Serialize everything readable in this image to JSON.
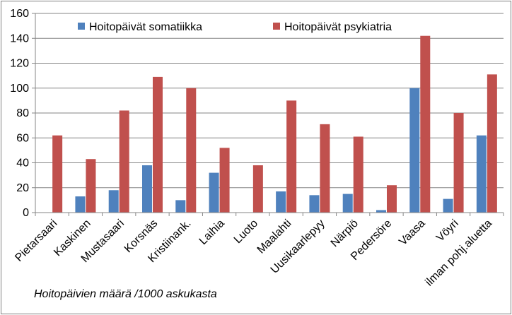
{
  "chart_data": {
    "type": "bar",
    "categories": [
      "Pietarsaari",
      "Kaskinen",
      "Mustasaari",
      "Korsnäs",
      "Kristiinank.",
      "Laihia",
      "Luoto",
      "Maalahti",
      "Uusikaarlepyy",
      "Närpiö",
      "Pedersöre",
      "Vaasa",
      "Vöyri",
      "ilman pohj.aluetta"
    ],
    "series": [
      {
        "name": "Hoitopäivät somatiikka",
        "color": "#4f81bd",
        "values": [
          0,
          13,
          18,
          38,
          10,
          32,
          0,
          17,
          14,
          15,
          2,
          100,
          11,
          62
        ]
      },
      {
        "name": "Hoitopäivät psykiatria",
        "color": "#c0504d",
        "values": [
          62,
          43,
          82,
          109,
          100,
          52,
          38,
          90,
          71,
          61,
          22,
          142,
          80,
          111
        ]
      }
    ],
    "ylim": [
      0,
      160
    ],
    "yticks": [
      0,
      20,
      40,
      60,
      80,
      100,
      120,
      140,
      160
    ],
    "grid": true,
    "legend_position": "top",
    "note": "Hoitopäivien määrä /1000 askukasta"
  }
}
